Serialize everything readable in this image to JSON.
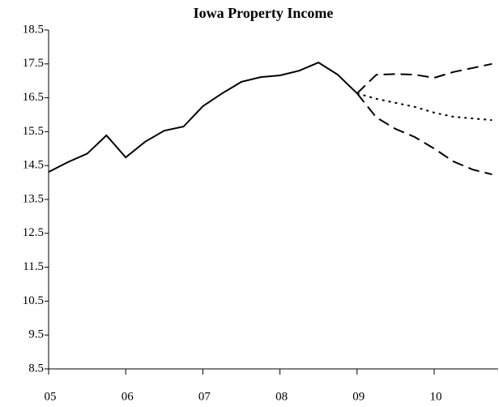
{
  "chart_data": {
    "type": "line",
    "title": "Iowa Property Income",
    "xlim": [
      2005,
      2010.83
    ],
    "xticks": [
      {
        "value": 2005,
        "label": "05"
      },
      {
        "value": 2006,
        "label": "06"
      },
      {
        "value": 2007,
        "label": "07"
      },
      {
        "value": 2008,
        "label": "08"
      },
      {
        "value": 2009,
        "label": "09"
      },
      {
        "value": 2010,
        "label": "10"
      }
    ],
    "ylim": [
      8.5,
      18.5
    ],
    "yticks": [
      8.5,
      9.5,
      10.5,
      11.5,
      12.5,
      13.5,
      14.5,
      15.5,
      16.5,
      17.5,
      18.5
    ],
    "grid": false,
    "series": [
      {
        "color": "#000000",
        "dash": "solid",
        "x": [
          2005,
          2005.25,
          2005.5,
          2005.75,
          2006,
          2006.25,
          2006.5,
          2006.75,
          2007,
          2007.25,
          2007.5,
          2007.75,
          2008,
          2008.25,
          2008.5,
          2008.75,
          2009
        ],
        "values": [
          14.31,
          14.6,
          14.85,
          15.39,
          14.74,
          15.2,
          15.53,
          15.65,
          16.25,
          16.63,
          16.97,
          17.11,
          17.16,
          17.3,
          17.54,
          17.18,
          16.63
        ]
      },
      {
        "color": "#000000",
        "dash": "long",
        "x": [
          2009,
          2009.25,
          2009.5,
          2009.75,
          2010,
          2010.25,
          2010.5,
          2010.75
        ],
        "values": [
          16.63,
          17.18,
          17.2,
          17.18,
          17.09,
          17.26,
          17.38,
          17.5
        ]
      },
      {
        "color": "#000000",
        "dash": "dotted",
        "x": [
          2009,
          2009.25,
          2009.5,
          2009.75,
          2010,
          2010.25,
          2010.5,
          2010.75
        ],
        "values": [
          16.63,
          16.47,
          16.35,
          16.23,
          16.06,
          15.94,
          15.89,
          15.84
        ]
      },
      {
        "color": "#000000",
        "dash": "long",
        "x": [
          2009,
          2009.25,
          2009.5,
          2009.75,
          2010,
          2010.25,
          2010.5,
          2010.75
        ],
        "values": [
          16.63,
          15.92,
          15.58,
          15.34,
          15.0,
          14.62,
          14.38,
          14.24
        ]
      }
    ]
  }
}
